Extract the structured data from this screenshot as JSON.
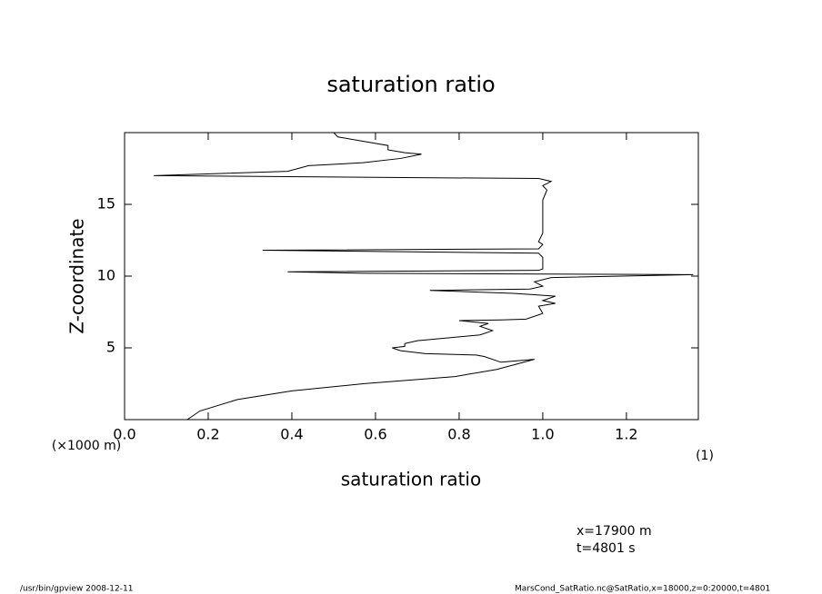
{
  "chart_data": {
    "type": "line",
    "title": "saturation ratio",
    "x_label": "saturation ratio",
    "y_label": "Z-coordinate",
    "y_unit": "(×1000 m)",
    "x_unit": "(1)",
    "notes": [
      "x=17900 m",
      "t=4801 s"
    ],
    "footer_left": "/usr/bin/gpview   2008-12-11",
    "footer_right": "MarsCond_SatRatio.nc@SatRatio,x=18000,z=0:20000,t=4801",
    "xlim": [
      0,
      1.372
    ],
    "ylim": [
      0,
      20
    ],
    "xticks": [
      {
        "value": 0,
        "label": "0.0"
      },
      0.2,
      0.4,
      0.6,
      0.8,
      {
        "value": 1,
        "label": "1.0"
      },
      1.2
    ],
    "yticks": [
      5,
      10,
      15
    ],
    "z": [
      0,
      0.6,
      1.4,
      2.0,
      2.5,
      3.0,
      3.5,
      4.2,
      4.0,
      4.4,
      4.5,
      4.6,
      4.8,
      5.0,
      5.1,
      5.3,
      5.5,
      5.9,
      6.2,
      6.5,
      6.7,
      6.9,
      6.95,
      7.0,
      7.4,
      7.9,
      8.1,
      8.3,
      8.6,
      8.7,
      8.8,
      9.0,
      9.1,
      9.3,
      9.6,
      9.9,
      10.1,
      10.2,
      10.3,
      10.4,
      10.5,
      11.3,
      11.6,
      11.8,
      11.9,
      12.2,
      12.4,
      13.0,
      14.5,
      15.3,
      16.0,
      16.3,
      16.6,
      16.8,
      17.0,
      17.3,
      17.7,
      17.9,
      18.2,
      18.5,
      18.6,
      18.8,
      19.1,
      19.4,
      19.7,
      20.0
    ],
    "series": [
      {
        "color": "#000000",
        "values": [
          0.15,
          0.18,
          0.27,
          0.4,
          0.57,
          0.79,
          0.89,
          0.98,
          0.9,
          0.86,
          0.84,
          0.72,
          0.66,
          0.64,
          0.67,
          0.67,
          0.7,
          0.85,
          0.88,
          0.85,
          0.87,
          0.8,
          0.9,
          0.96,
          1.0,
          0.99,
          1.03,
          1.0,
          1.03,
          0.98,
          0.93,
          0.73,
          0.97,
          1.0,
          0.98,
          1.02,
          1.36,
          0.57,
          0.39,
          0.99,
          1.0,
          1.0,
          0.99,
          0.33,
          0.99,
          1.0,
          0.99,
          1.0,
          1.0,
          1.0,
          1.01,
          1.0,
          1.02,
          0.99,
          0.07,
          0.39,
          0.44,
          0.57,
          0.66,
          0.71,
          0.67,
          0.63,
          0.63,
          0.57,
          0.51,
          0.5
        ]
      }
    ]
  }
}
